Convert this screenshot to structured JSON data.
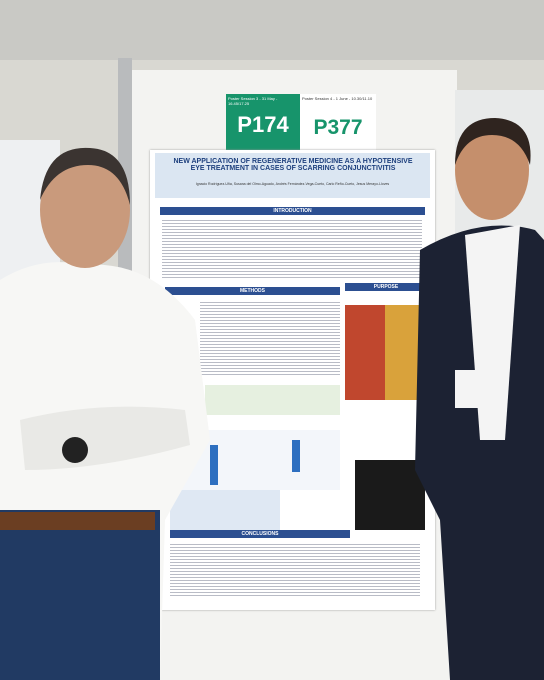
{
  "board": {
    "session_left": "Poster Session 3 - 31 May - 16.45/17.25",
    "session_right": "Poster Session 4 - 1 June - 10.30/11.10",
    "code_left": "P174",
    "code_right": "P377"
  },
  "poster": {
    "title": "NEW APPLICATION OF REGENERATIVE MEDICINE AS A HYPOTENSIVE EYE TREATMENT IN CASES OF SCARRING CONJUNCTIVITIS",
    "authors": "Ignacio Rodríguez-Uña, Susana del Olmo-Aguado, Andrés Fernández-Vega-Cueto, Carlo Reño-Cueto, Jesus Merayo-Lloves",
    "sections": [
      "INTRODUCTION",
      "METHODS",
      "PURPOSE",
      "CONCLUSIONS"
    ]
  }
}
